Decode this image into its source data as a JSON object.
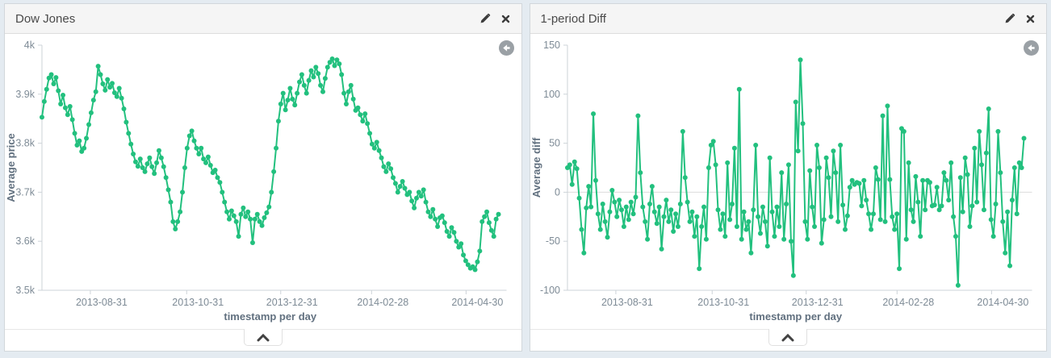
{
  "colors": {
    "page_background": "#e4ebf1",
    "panel_header_background": "#f5f5f5",
    "series_green": "#22c07e",
    "axis_line": "#cdd3d8",
    "zero_line": "#dcdcdc",
    "tick_text": "#7e8b96",
    "axis_title_text": "#61707f",
    "icon_gray": "#3c3c3c",
    "back_circle_gray": "#9aa0a5"
  },
  "panels": [
    {
      "title": "Dow Jones",
      "icons": {
        "edit": "edit-pencil",
        "close": "close-x",
        "back": "back-arrow-circle",
        "collapse": "chevron-up"
      }
    },
    {
      "title": "1-period Diff",
      "icons": {
        "edit": "edit-pencil",
        "close": "close-x",
        "back": "back-arrow-circle",
        "collapse": "chevron-up"
      }
    }
  ],
  "chart_data": [
    {
      "type": "line",
      "title": "Dow Jones",
      "xlabel": "timestamp per day",
      "ylabel": "Average price",
      "ylim": [
        3500,
        4000
      ],
      "grid": false,
      "zero_line": false,
      "color": "#22c07e",
      "y_ticks": [
        {
          "label": "4k",
          "value": 4000
        },
        {
          "label": "3.9k",
          "value": 3900
        },
        {
          "label": "3.8k",
          "value": 3800
        },
        {
          "label": "3.7k",
          "value": 3700
        },
        {
          "label": "3.6k",
          "value": 3600
        },
        {
          "label": "3.5k",
          "value": 3500
        }
      ],
      "x_ticks": [
        {
          "label": "2013-08-31",
          "f": 0.106
        },
        {
          "label": "2013-10-31",
          "f": 0.317
        },
        {
          "label": "2013-12-31",
          "f": 0.523
        },
        {
          "label": "2014-02-28",
          "f": 0.722
        },
        {
          "label": "2014-04-30",
          "f": 0.929
        }
      ],
      "values": [
        3853,
        3885,
        3910,
        3933,
        3940,
        3921,
        3934,
        3907,
        3880,
        3898,
        3872,
        3858,
        3875,
        3848,
        3820,
        3796,
        3805,
        3783,
        3790,
        3810,
        3838,
        3862,
        3888,
        3905,
        3957,
        3940,
        3921,
        3908,
        3930,
        3914,
        3922,
        3903,
        3895,
        3912,
        3892,
        3870,
        3843,
        3820,
        3798,
        3778,
        3762,
        3753,
        3768,
        3750,
        3742,
        3758,
        3770,
        3752,
        3738,
        3760,
        3785,
        3770,
        3752,
        3730,
        3705,
        3680,
        3640,
        3625,
        3640,
        3660,
        3700,
        3750,
        3790,
        3815,
        3825,
        3805,
        3790,
        3778,
        3790,
        3768,
        3760,
        3772,
        3755,
        3740,
        3745,
        3730,
        3720,
        3700,
        3680,
        3660,
        3645,
        3662,
        3652,
        3640,
        3610,
        3655,
        3668,
        3650,
        3660,
        3645,
        3597,
        3645,
        3655,
        3640,
        3632,
        3648,
        3658,
        3670,
        3700,
        3742,
        3790,
        3845,
        3880,
        3902,
        3868,
        3888,
        3912,
        3890,
        3878,
        3902,
        3925,
        3940,
        3918,
        3902,
        3928,
        3948,
        3935,
        3955,
        3942,
        3918,
        3905,
        3932,
        3955,
        3965,
        3972,
        3958,
        3970,
        3962,
        3940,
        3902,
        3880,
        3905,
        3918,
        3890,
        3867,
        3872,
        3858,
        3845,
        3860,
        3840,
        3820,
        3798,
        3790,
        3802,
        3785,
        3770,
        3752,
        3742,
        3758,
        3748,
        3730,
        3718,
        3700,
        3712,
        3722,
        3708,
        3695,
        3700,
        3682,
        3668,
        3688,
        3700,
        3692,
        3705,
        3680,
        3660,
        3650,
        3665,
        3645,
        3630,
        3648,
        3652,
        3638,
        3620,
        3610,
        3628,
        3618,
        3600,
        3588,
        3595,
        3572,
        3560,
        3552,
        3545,
        3548,
        3542,
        3558,
        3580,
        3640,
        3650,
        3660,
        3638,
        3622,
        3610,
        3645,
        3655
      ]
    },
    {
      "type": "line",
      "title": "1-period Diff",
      "xlabel": "timestamp per day",
      "ylabel": "Average diff",
      "ylim": [
        -100,
        150
      ],
      "grid": false,
      "zero_line": true,
      "color": "#22c07e",
      "y_ticks": [
        {
          "label": "150",
          "value": 150
        },
        {
          "label": "100",
          "value": 100
        },
        {
          "label": "50",
          "value": 50
        },
        {
          "label": "0",
          "value": 0
        },
        {
          "label": "-50",
          "value": -50
        },
        {
          "label": "-100",
          "value": -100
        }
      ],
      "x_ticks": [
        {
          "label": "2013-08-31",
          "f": 0.106
        },
        {
          "label": "2013-10-31",
          "f": 0.317
        },
        {
          "label": "2013-12-31",
          "f": 0.523
        },
        {
          "label": "2014-02-28",
          "f": 0.722
        },
        {
          "label": "2014-04-30",
          "f": 0.929
        }
      ],
      "values": [
        25,
        28,
        8,
        31,
        24,
        -6,
        -38,
        -62,
        -16,
        6,
        -15,
        80,
        12,
        -22,
        -38,
        -12,
        -30,
        -46,
        -20,
        2,
        -10,
        -25,
        -8,
        -18,
        -35,
        -15,
        -28,
        -10,
        -22,
        -5,
        78,
        20,
        -15,
        -30,
        -48,
        -12,
        6,
        -20,
        -32,
        -15,
        -58,
        -25,
        -8,
        -30,
        -18,
        -40,
        -22,
        -35,
        -12,
        62,
        15,
        -10,
        -30,
        -20,
        -45,
        -25,
        -78,
        -35,
        -15,
        -48,
        25,
        48,
        52,
        28,
        -18,
        -38,
        -22,
        -45,
        30,
        -28,
        -12,
        45,
        -35,
        105,
        -48,
        -20,
        -38,
        -30,
        -62,
        -18,
        48,
        -25,
        -42,
        -15,
        -30,
        -55,
        35,
        -20,
        -45,
        -15,
        -35,
        20,
        -48,
        -12,
        28,
        -50,
        -85,
        92,
        42,
        135,
        70,
        -30,
        -48,
        22,
        -15,
        -35,
        48,
        25,
        -52,
        -28,
        35,
        15,
        -25,
        42,
        20,
        -30,
        48,
        -13,
        -38,
        -24,
        5,
        12,
        8,
        10,
        9,
        -14,
        12,
        -8,
        -22,
        -38,
        -22,
        25,
        13,
        -28,
        78,
        -30,
        88,
        13,
        -25,
        -38,
        -22,
        -78,
        65,
        62,
        -48,
        30,
        -18,
        -30,
        16,
        -10,
        -45,
        12,
        -18,
        12,
        10,
        -14,
        -13,
        5,
        -18,
        -14,
        20,
        12,
        -8,
        30,
        -25,
        -45,
        -95,
        15,
        -20,
        35,
        18,
        -35,
        -14,
        45,
        -10,
        62,
        28,
        -18,
        40,
        85,
        -28,
        -45,
        -12,
        62,
        20,
        -30,
        -62,
        -20,
        -75,
        -8,
        25,
        -22,
        30,
        25,
        55
      ]
    }
  ]
}
